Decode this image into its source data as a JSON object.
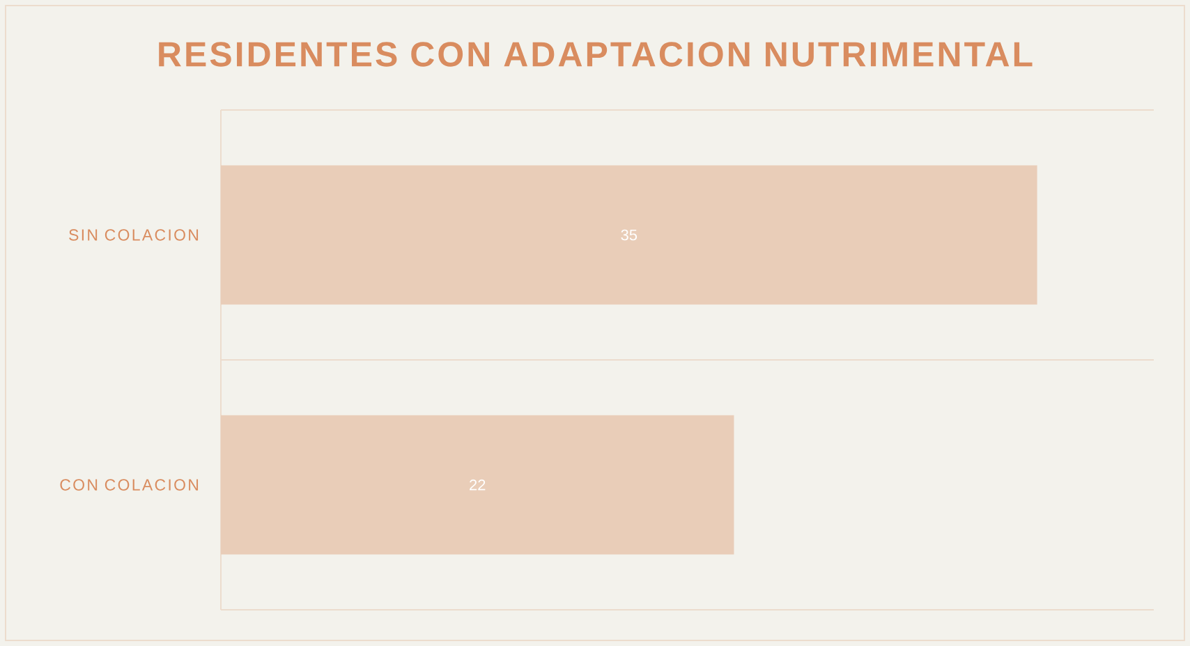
{
  "chart_data": {
    "type": "bar",
    "orientation": "horizontal",
    "title": "RESIDENTES CON ADAPTACION NUTRIMENTAL",
    "categories": [
      "SIN COLACION",
      "CON COLACION"
    ],
    "values": [
      35,
      22
    ],
    "color": "#e9cdb8",
    "xlim": [
      0,
      40
    ],
    "tick_labels": "y",
    "grid": "y",
    "data_labels": true
  }
}
